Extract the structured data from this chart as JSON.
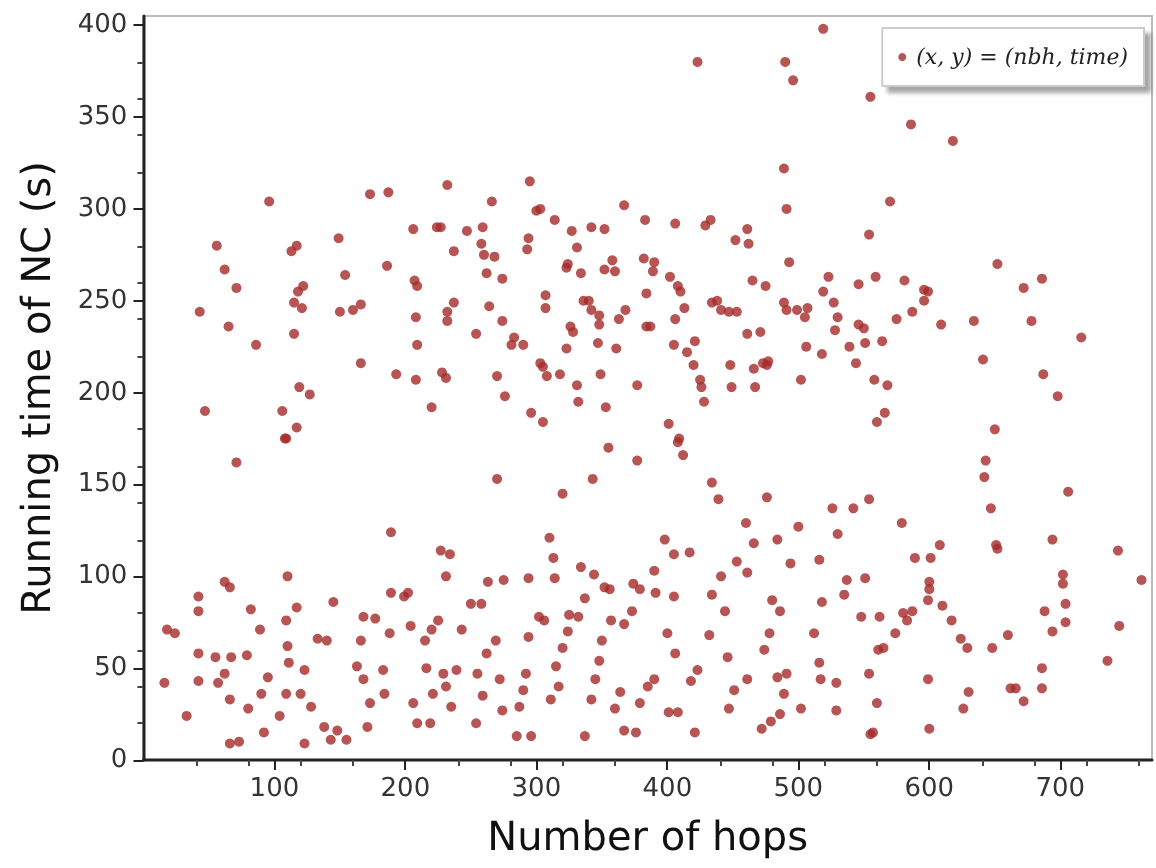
{
  "chart_data": {
    "type": "scatter",
    "xlabel": "Number of hops",
    "ylabel": "Running time of NC (s)",
    "xlim": [
      0,
      770
    ],
    "ylim": [
      0,
      405
    ],
    "xticks": [
      100,
      200,
      300,
      400,
      500,
      600,
      700
    ],
    "yticks": [
      0,
      50,
      100,
      150,
      200,
      250,
      300,
      350,
      400
    ],
    "grid": false,
    "legend": "top right",
    "marker": "circle",
    "series": [
      {
        "name": "(x, y) = (nbh, time)",
        "color": "#a52a2a",
        "x": [
          519,
          423,
          490,
          496,
          555,
          586,
          618,
          489,
          491,
          570,
          554,
          96,
          173,
          187,
          232,
          295,
          266,
          367,
          300,
          303,
          314,
          342,
          352,
          383,
          406,
          429,
          433,
          461,
          452,
          462,
          56,
          62,
          71,
          43,
          65,
          86,
          113,
          117,
          115,
          118,
          122,
          121,
          115,
          149,
          154,
          150,
          160,
          166,
          186,
          206,
          207,
          209,
          208,
          209,
          224,
          227,
          237,
          247,
          232,
          232,
          237,
          259,
          258,
          260,
          262,
          268,
          264,
          274,
          274,
          254,
          283,
          281,
          290,
          293,
          294,
          307,
          307,
          327,
          323,
          324,
          331,
          334,
          326,
          328,
          323,
          336,
          340,
          342,
          348,
          348,
          347,
          361,
          358,
          352,
          360,
          363,
          368,
          382,
          384,
          384,
          387,
          390,
          389,
          402,
          408,
          410,
          413,
          406,
          405,
          415,
          421,
          420,
          434,
          438,
          441,
          447,
          453,
          465,
          461,
          471,
          475,
          477,
          489,
          491,
          499,
          505,
          507,
          493,
          523,
          519,
          527,
          530,
          528,
          539,
          544,
          546,
          550,
          551,
          546,
          559,
          564,
          575,
          581,
          587,
          596,
          596,
          599,
          609,
          634,
          652,
          641,
          672,
          678,
          686,
          687,
          698,
          716,
          518,
          506,
          502,
          476,
          466,
          448,
          449,
          467,
          473,
          425,
          428,
          426,
          409,
          401,
          377,
          353,
          349,
          332,
          331,
          318,
          308,
          305,
          303,
          296,
          305,
          276,
          270,
          231,
          228,
          220,
          208,
          193,
          166,
          47,
          106,
          117,
          119,
          127,
          560,
          566,
          568,
          558,
          650,
          109,
          108,
          71,
          355,
          408,
          412,
          270,
          320,
          343,
          377,
          434,
          439,
          476,
          554,
          542,
          526,
          530,
          579,
          643,
          642,
          647,
          651,
          652,
          706,
          694,
          744,
          762,
          702,
          702,
          704,
          688,
          694,
          704,
          745,
          736,
          686,
          686,
          672,
          662,
          666,
          660,
          648,
          629,
          630,
          626,
          624,
          617,
          610,
          608,
          601,
          600,
          600,
          599,
          599,
          600,
          589,
          587,
          580,
          583,
          574,
          562,
          565,
          561,
          560,
          557,
          555,
          554,
          548,
          551,
          537,
          535,
          516,
          518,
          512,
          516,
          517,
          529,
          529,
          502,
          500,
          494,
          480,
          486,
          478,
          474,
          484,
          491,
          489,
          486,
          479,
          472,
          484,
          466,
          460,
          453,
          461,
          441,
          434,
          444,
          446,
          451,
          461,
          447,
          432,
          423,
          418,
          421,
          417,
          405,
          398,
          405,
          390,
          391,
          400,
          406,
          408,
          401,
          390,
          385,
          379,
          376,
          374,
          379,
          373,
          367,
          356,
          352,
          357,
          350,
          348,
          345,
          342,
          337,
          367,
          360,
          364,
          344,
          334,
          337,
          332,
          325,
          324,
          320,
          315,
          317,
          311,
          310,
          313,
          314,
          294,
          302,
          306,
          294,
          292,
          290,
          285,
          296,
          287,
          275,
          263,
          258,
          269,
          262,
          255,
          259,
          254,
          272,
          274,
          250,
          243,
          239,
          229,
          231,
          235,
          219,
          227,
          234,
          231,
          225,
          220,
          215,
          216,
          221,
          209,
          206,
          202,
          199,
          204,
          188,
          189,
          189,
          177,
          168,
          166,
          163,
          168,
          173,
          171,
          183,
          184,
          145,
          140,
          133,
          123,
          120,
          128,
          123,
          148,
          143,
          155,
          138,
          110,
          117,
          109,
          110,
          111,
          109,
          104,
          95,
          90,
          92,
          80,
          79,
          89,
          82,
          67,
          62,
          66,
          66,
          73,
          62,
          66,
          42,
          42,
          42,
          42,
          55,
          57,
          33,
          18,
          24,
          16
        ],
        "values": [
          398,
          380,
          380,
          370,
          361,
          346,
          337,
          322,
          300,
          304,
          286,
          304,
          308,
          309,
          313,
          315,
          304,
          302,
          299,
          300,
          294,
          290,
          289,
          294,
          292,
          291,
          294,
          289,
          283,
          281,
          280,
          267,
          257,
          244,
          236,
          226,
          277,
          280,
          249,
          255,
          258,
          246,
          232,
          284,
          264,
          244,
          245,
          248,
          269,
          289,
          261,
          258,
          241,
          226,
          290,
          290,
          277,
          288,
          244,
          239,
          249,
          290,
          281,
          275,
          265,
          274,
          247,
          262,
          239,
          232,
          230,
          226,
          226,
          278,
          284,
          253,
          246,
          288,
          268,
          270,
          279,
          265,
          236,
          233,
          224,
          250,
          250,
          245,
          242,
          237,
          227,
          224,
          272,
          267,
          266,
          240,
          245,
          273,
          254,
          236,
          236,
          271,
          266,
          263,
          258,
          255,
          246,
          240,
          226,
          222,
          228,
          215,
          249,
          250,
          245,
          244,
          244,
          261,
          232,
          233,
          258,
          217,
          249,
          245,
          245,
          241,
          246,
          271,
          263,
          255,
          249,
          241,
          234,
          225,
          216,
          237,
          235,
          227,
          259,
          263,
          228,
          240,
          261,
          244,
          250,
          256,
          255,
          237,
          239,
          270,
          218,
          257,
          239,
          262,
          210,
          198,
          230,
          221,
          225,
          207,
          215,
          213,
          215,
          203,
          203,
          216,
          207,
          195,
          203,
          175,
          183,
          204,
          192,
          210,
          195,
          204,
          210,
          209,
          214,
          216,
          189,
          184,
          198,
          209,
          208,
          211,
          192,
          207,
          210,
          216,
          190,
          190,
          181,
          203,
          199,
          184,
          189,
          204,
          207,
          180,
          175,
          175,
          162,
          170,
          173,
          166,
          153,
          145,
          153,
          163,
          151,
          142,
          143,
          142,
          137,
          137,
          123,
          129,
          163,
          154,
          137,
          117,
          115,
          146,
          120,
          114,
          98,
          101,
          96,
          85,
          81,
          70,
          75,
          73,
          54,
          50,
          39,
          32,
          39,
          39,
          68,
          61,
          61,
          37,
          28,
          66,
          76,
          84,
          117,
          110,
          97,
          93,
          87,
          44,
          17,
          110,
          81,
          80,
          76,
          69,
          78,
          61,
          60,
          31,
          15,
          14,
          47,
          78,
          99,
          98,
          90,
          109,
          86,
          69,
          53,
          44,
          42,
          27,
          28,
          127,
          107,
          87,
          81,
          69,
          60,
          45,
          47,
          36,
          25,
          21,
          17,
          120,
          118,
          129,
          108,
          102,
          100,
          90,
          81,
          56,
          38,
          44,
          28,
          68,
          49,
          43,
          15,
          113,
          112,
          120,
          89,
          103,
          91,
          69,
          58,
          26,
          26,
          44,
          40,
          31,
          15,
          96,
          93,
          81,
          74,
          93,
          94,
          76,
          65,
          54,
          44,
          33,
          13,
          16,
          28,
          37,
          101,
          105,
          88,
          78,
          79,
          70,
          61,
          51,
          40,
          33,
          121,
          110,
          99,
          99,
          78,
          76,
          67,
          47,
          38,
          13,
          13,
          29,
          98,
          97,
          85,
          65,
          58,
          47,
          35,
          20,
          44,
          27,
          85,
          71,
          49,
          47,
          40,
          29,
          20,
          114,
          112,
          100,
          76,
          71,
          65,
          50,
          36,
          20,
          31,
          91,
          89,
          73,
          69,
          91,
          124,
          77,
          78,
          65,
          51,
          44,
          31,
          18,
          49,
          36,
          86,
          65,
          66,
          49,
          36,
          29,
          9,
          16,
          11,
          11,
          18,
          100,
          83,
          76,
          62,
          53,
          36,
          24,
          45,
          36,
          15,
          28,
          57,
          71,
          82,
          56,
          47,
          33,
          9,
          10,
          97,
          94,
          89,
          81,
          58,
          43,
          56,
          42,
          24,
          71,
          69,
          42
        ]
      }
    ]
  }
}
